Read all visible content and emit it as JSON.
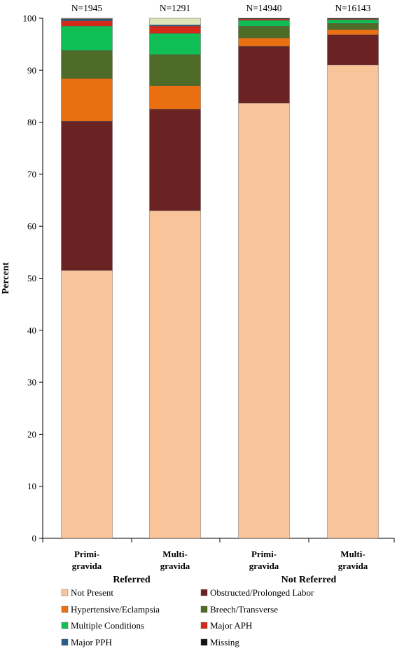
{
  "chart_data": {
    "type": "bar",
    "stacked": true,
    "ylabel": "Percent",
    "ylim": [
      0,
      100
    ],
    "yticks": [
      0,
      10,
      20,
      30,
      40,
      50,
      60,
      70,
      80,
      90,
      100
    ],
    "grid": false,
    "legend_position": "bottom",
    "groups": [
      "Referred",
      "Not Referred"
    ],
    "categories": [
      {
        "line1": "Primi-",
        "line2": "gravida",
        "group": 0,
        "n_label": "N=1945"
      },
      {
        "line1": "Multi-",
        "line2": "gravida",
        "group": 0,
        "n_label": "N=1291"
      },
      {
        "line1": "Primi-",
        "line2": "gravida",
        "group": 1,
        "n_label": "N=14940"
      },
      {
        "line1": "Multi-",
        "line2": "gravida",
        "group": 1,
        "n_label": "N=16143"
      }
    ],
    "series": [
      {
        "name": "Not Present",
        "color": "#f9c49a",
        "values": [
          51.5,
          63.0,
          83.7,
          91.0
        ]
      },
      {
        "name": "Obstructed/Prolonged Labor",
        "color": "#6b2222",
        "values": [
          28.7,
          19.5,
          10.9,
          5.8
        ]
      },
      {
        "name": "Hypertensive/Eclampsia",
        "color": "#ea6f10",
        "values": [
          8.2,
          4.5,
          1.6,
          1.0
        ]
      },
      {
        "name": "Breech/Transverse",
        "color": "#4f6b28",
        "values": [
          5.4,
          6.0,
          2.3,
          1.2
        ]
      },
      {
        "name": "Multiple Conditions",
        "color": "#0fbf55",
        "values": [
          4.7,
          4.1,
          1.1,
          0.7
        ]
      },
      {
        "name": "Major APH",
        "color": "#d42a1a",
        "values": [
          1.0,
          1.4,
          0.3,
          0.2
        ]
      },
      {
        "name": "Major PPH",
        "color": "#2b5d8a",
        "values": [
          0.3,
          0.2,
          0.05,
          0.05
        ]
      },
      {
        "name": "Missing",
        "color": "#111111",
        "values": [
          0.1,
          0.0,
          0.05,
          0.05
        ]
      },
      {
        "name": "",
        "color": "#dbe5b9",
        "values": [
          0.1,
          1.3,
          0.0,
          0.0
        ]
      }
    ]
  }
}
